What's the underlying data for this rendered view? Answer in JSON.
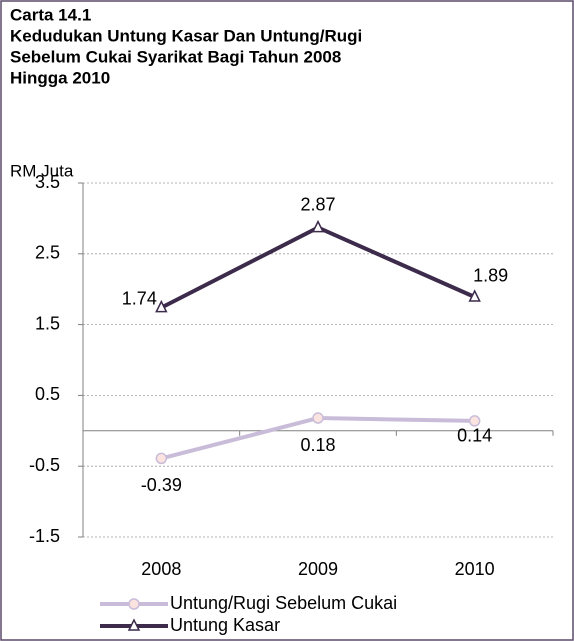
{
  "chart_data": {
    "type": "line",
    "title": [
      "Carta 14.1",
      "Kedudukan  Untung Kasar Dan Untung/Rugi",
      "Sebelum Cukai Syarikat Bagi Tahun 2008",
      "Hingga 2010"
    ],
    "y_label": "RM Juta",
    "categories": [
      "2008",
      "2009",
      "2010"
    ],
    "series": [
      {
        "name": "Untung/Rugi Sebelum Cukai",
        "color": "#c9bcd9",
        "marker": "circle",
        "values": [
          -0.39,
          0.18,
          0.14
        ]
      },
      {
        "name": "Untung Kasar",
        "color": "#3c2b4b",
        "marker": "triangle",
        "values": [
          1.74,
          2.87,
          1.89
        ]
      }
    ],
    "ylim": [
      -1.5,
      3.5
    ],
    "yticks": [
      -1.5,
      -0.5,
      0.5,
      1.5,
      2.5,
      3.5
    ],
    "grid": true
  }
}
